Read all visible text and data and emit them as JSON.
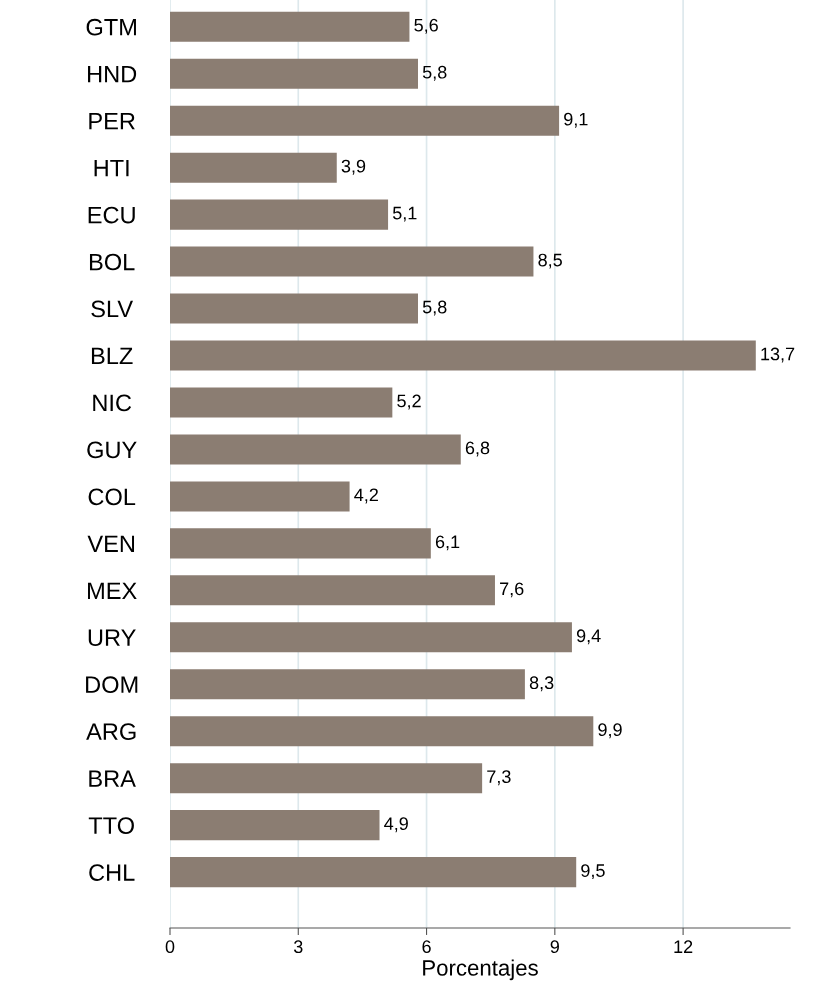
{
  "chart_data": {
    "type": "bar",
    "orientation": "horizontal",
    "xlabel": "Porcentajes",
    "categories": [
      "GTM",
      "HND",
      "PER",
      "HTI",
      "ECU",
      "BOL",
      "SLV",
      "BLZ",
      "NIC",
      "GUY",
      "COL",
      "VEN",
      "MEX",
      "URY",
      "DOM",
      "ARG",
      "BRA",
      "TTO",
      "CHL"
    ],
    "values": [
      5.6,
      5.8,
      9.1,
      3.9,
      5.1,
      8.5,
      5.8,
      13.7,
      5.2,
      6.8,
      4.2,
      6.1,
      7.6,
      9.4,
      8.3,
      9.9,
      7.3,
      4.9,
      9.5
    ],
    "value_labels": [
      "5,6",
      "5,8",
      "9,1",
      "3,9",
      "5,1",
      "8,5",
      "5,8",
      "13,7",
      "5,2",
      "6,8",
      "4,2",
      "6,1",
      "7,6",
      "9,4",
      "8,3",
      "9,9",
      "7,3",
      "4,9",
      "9,5"
    ],
    "color": "#8b7d72",
    "xlim": [
      0,
      14.5
    ],
    "xticks": [
      0,
      3,
      6,
      9,
      12
    ],
    "grid": "x",
    "legend": false
  }
}
